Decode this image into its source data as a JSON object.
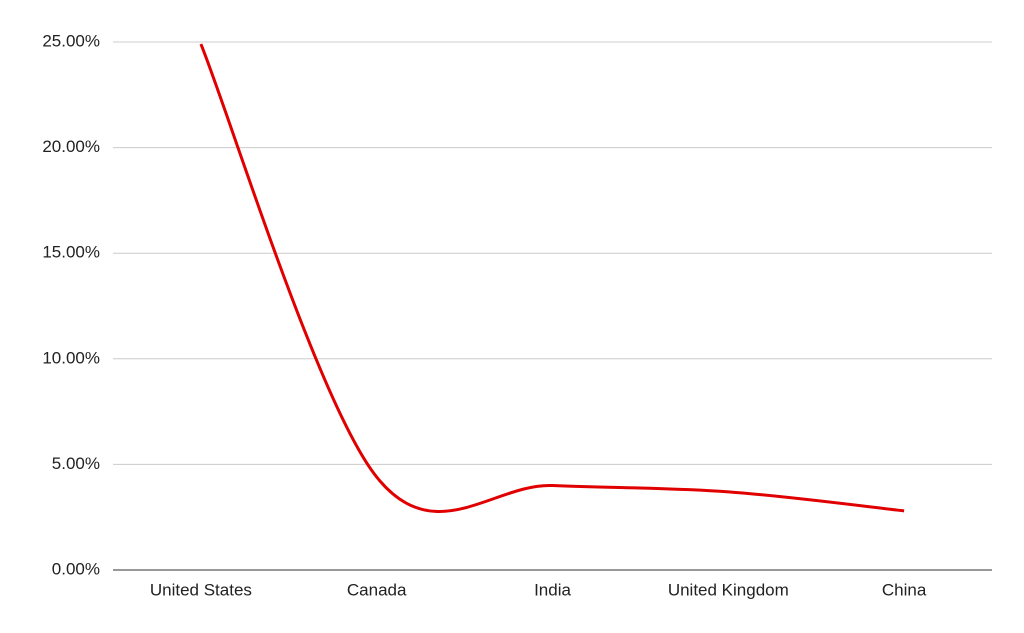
{
  "chart_data": {
    "type": "line",
    "categories": [
      "United States",
      "Canada",
      "India",
      "United Kingdom",
      "China"
    ],
    "values": [
      24.9,
      4.4,
      4.0,
      3.7,
      2.8
    ],
    "color": "#e00000",
    "smooth": true,
    "ylim": [
      0,
      25
    ],
    "yticks": [
      {
        "value": 0,
        "label": "0.00%"
      },
      {
        "value": 5,
        "label": "5.00%"
      },
      {
        "value": 10,
        "label": "10.00%"
      },
      {
        "value": 15,
        "label": "15.00%"
      },
      {
        "value": 20,
        "label": "20.00%"
      },
      {
        "value": 25,
        "label": "25.00%"
      }
    ],
    "grid": true
  }
}
